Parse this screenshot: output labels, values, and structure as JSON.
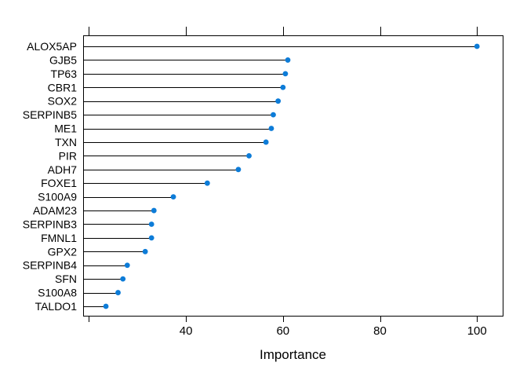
{
  "window": {
    "background": "#ffffff"
  },
  "chart_data": {
    "type": "scatter",
    "variant": "horizontal-lollipop-dotchart",
    "title": "",
    "xlabel": "Importance",
    "ylabel": "",
    "categories_order": "top-to-bottom",
    "categories": [
      "ALOX5AP",
      "GJB5",
      "TP63",
      "CBR1",
      "SOX2",
      "SERPINB5",
      "ME1",
      "TXN",
      "PIR",
      "ADH7",
      "FOXE1",
      "S100A9",
      "ADAM23",
      "SERPINB3",
      "FMNL1",
      "GPX2",
      "SERPINB4",
      "SFN",
      "S100A8",
      "TALDO1"
    ],
    "values": [
      100,
      61,
      60.5,
      60,
      59,
      58,
      57.6,
      56.5,
      53,
      50.8,
      44.4,
      37.4,
      33.4,
      32.9,
      32.9,
      31.6,
      27.9,
      27,
      26,
      23.5
    ],
    "xlim": [
      18.8,
      105.3
    ],
    "x_ticks": [
      20,
      40,
      60,
      80,
      100
    ],
    "x_tick_labels": [
      "",
      "40",
      "60",
      "80",
      "100"
    ],
    "ticks_on_top_axis": true,
    "ticks_on_bottom_axis": true,
    "grid": false,
    "legend": null,
    "colors": {
      "point": "#0d7cd8",
      "line": "#000000",
      "border": "#000000",
      "text": "#000000",
      "background": "#ffffff"
    }
  }
}
